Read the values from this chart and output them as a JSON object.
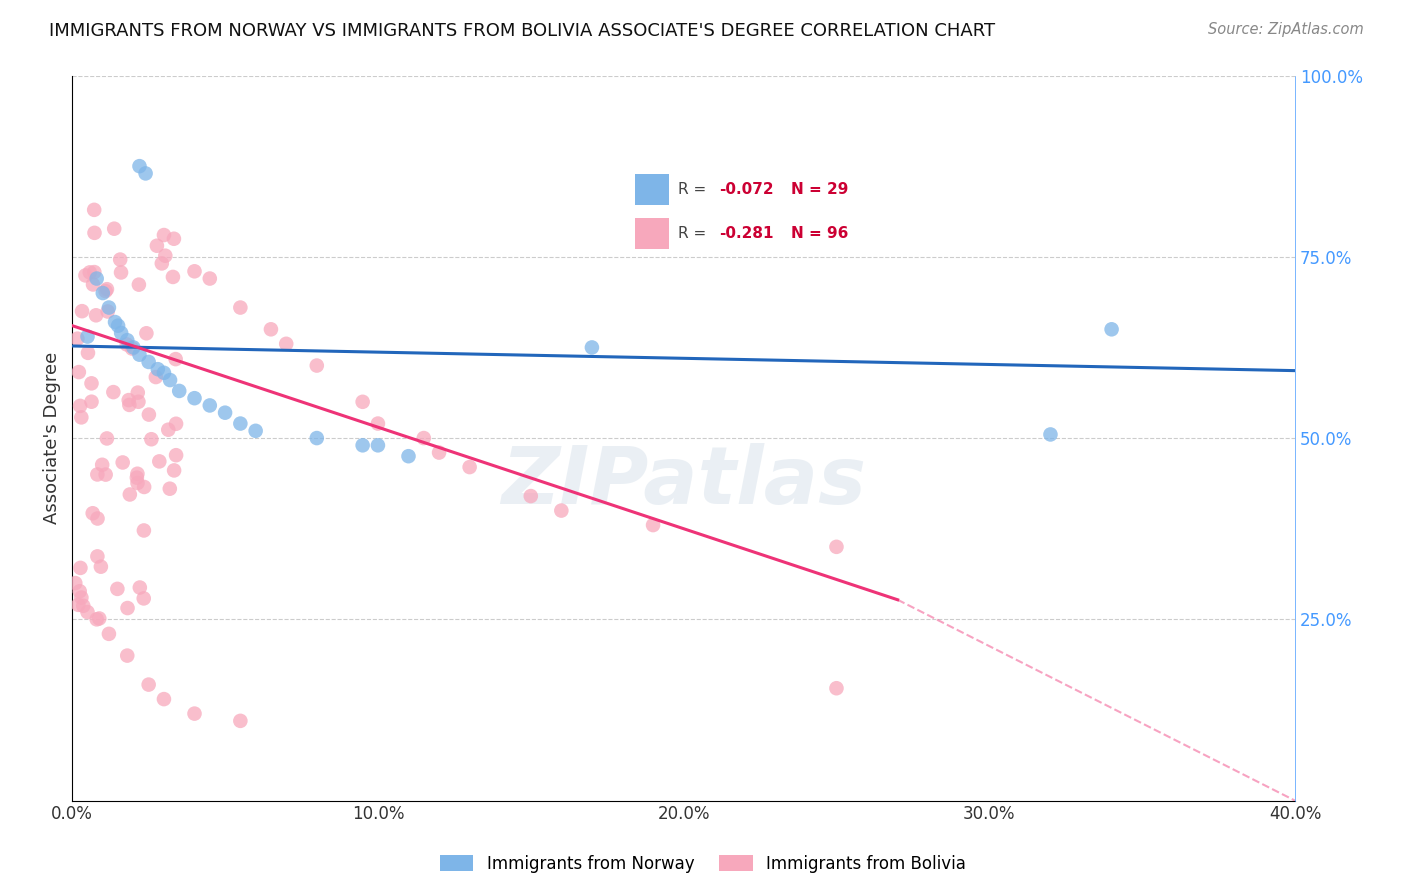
{
  "title": "IMMIGRANTS FROM NORWAY VS IMMIGRANTS FROM BOLIVIA ASSOCIATE'S DEGREE CORRELATION CHART",
  "source": "Source: ZipAtlas.com",
  "ylabel_label": "Associate's Degree",
  "xlim": [
    0.0,
    0.4
  ],
  "ylim": [
    0.0,
    1.0
  ],
  "norway_R": -0.072,
  "norway_N": 29,
  "bolivia_R": -0.281,
  "bolivia_N": 96,
  "norway_color": "#7EB5E8",
  "bolivia_color": "#F7A8BC",
  "norway_line_color": "#2266BB",
  "bolivia_line_color": "#EE3377",
  "norway_line_y0": 0.627,
  "norway_line_y1": 0.593,
  "bolivia_line_y0": 0.655,
  "bolivia_line_solid_x1": 0.27,
  "bolivia_line_solid_y1": 0.277,
  "bolivia_line_dash_x1": 0.4,
  "bolivia_line_dash_y1": 0.0,
  "watermark": "ZIPatlas",
  "background_color": "#ffffff",
  "grid_color": "#cccccc",
  "legend_R_color": "#CC0033",
  "legend_N_color": "#CC0033"
}
